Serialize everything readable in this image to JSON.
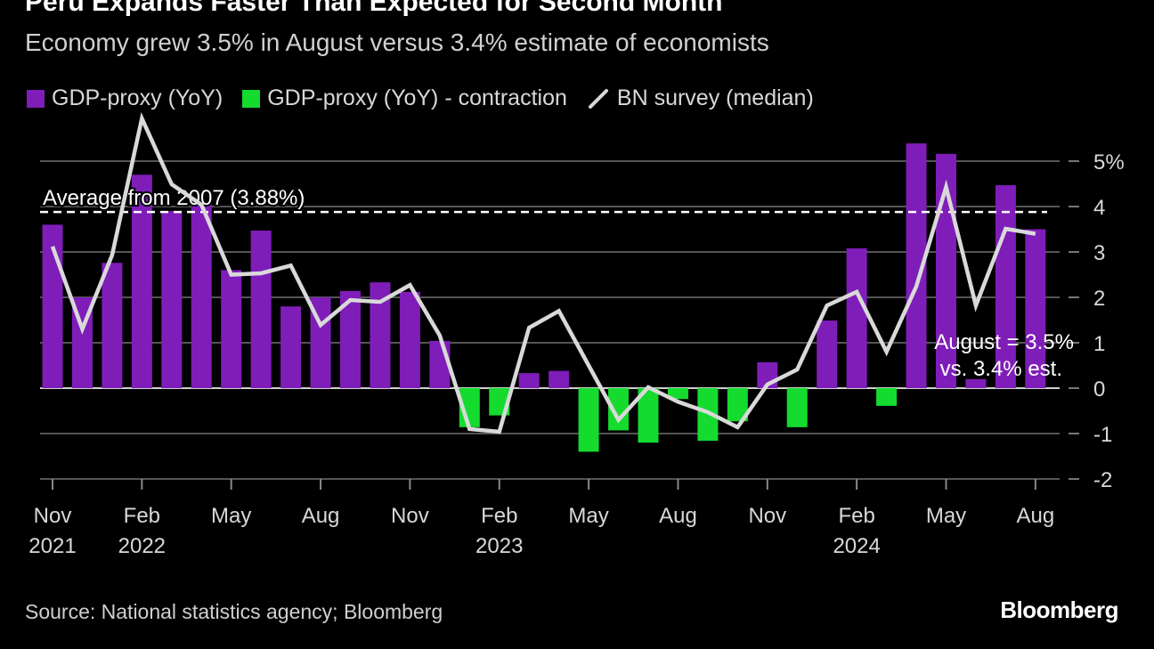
{
  "title": "Peru Expands Faster Than Expected for Second Month",
  "subtitle": "Economy grew 3.5% in August versus 3.4% estimate of economists",
  "source": "Source: National statistics agency; Bloomberg",
  "logo": "Bloomberg",
  "colors": {
    "positive": "#7f1db9",
    "contraction": "#14db2e",
    "survey": "#d9d9d9",
    "grid": "#555555"
  },
  "chart_data": {
    "type": "bar",
    "title": "Peru Expands Faster Than Expected for Second Month",
    "subtitle": "Economy grew 3.5% in August versus 3.4% estimate of economists",
    "legend": [
      {
        "name": "GDP-proxy (YoY)",
        "marker": "square",
        "color": "#7f1db9"
      },
      {
        "name": "GDP-proxy (YoY) - contraction",
        "marker": "square",
        "color": "#14db2e"
      },
      {
        "name": "BN survey (median)",
        "marker": "line",
        "color": "#d9d9d9"
      }
    ],
    "legend_position": "top-left",
    "categories": [
      "Nov 2021",
      "Dec 2021",
      "Jan 2022",
      "Feb 2022",
      "Mar 2022",
      "Apr 2022",
      "May 2022",
      "Jun 2022",
      "Jul 2022",
      "Aug 2022",
      "Sep 2022",
      "Oct 2022",
      "Nov 2022",
      "Dec 2022",
      "Jan 2023",
      "Feb 2023",
      "Mar 2023",
      "Apr 2023",
      "May 2023",
      "Jun 2023",
      "Jul 2023",
      "Aug 2023",
      "Sep 2023",
      "Oct 2023",
      "Nov 2023",
      "Dec 2023",
      "Jan 2024",
      "Feb 2024",
      "Mar 2024",
      "Apr 2024",
      "May 2024",
      "Jun 2024",
      "Jul 2024",
      "Aug 2024"
    ],
    "series": [
      {
        "name": "GDP-proxy (YoY)",
        "type": "bar",
        "values": [
          3.6,
          2.0,
          2.76,
          4.7,
          3.9,
          4.08,
          2.6,
          3.47,
          1.8,
          2.0,
          2.14,
          2.33,
          2.12,
          1.04,
          -0.86,
          -0.6,
          0.33,
          0.38,
          -1.4,
          -0.93,
          -1.2,
          -0.24,
          -1.16,
          -0.73,
          0.57,
          -0.86,
          1.49,
          3.08,
          -0.39,
          5.39,
          5.16,
          0.2,
          4.47,
          3.5
        ]
      },
      {
        "name": "BN survey (median)",
        "type": "line",
        "values": [
          3.12,
          1.3,
          2.93,
          5.94,
          4.49,
          4.04,
          2.5,
          2.53,
          2.7,
          1.39,
          1.94,
          1.9,
          2.27,
          1.16,
          -0.9,
          -0.96,
          1.33,
          1.7,
          0.5,
          -0.7,
          0.02,
          -0.3,
          -0.53,
          -0.86,
          0.08,
          0.41,
          1.82,
          2.12,
          0.8,
          2.24,
          4.43,
          1.82,
          3.51,
          3.4
        ]
      }
    ],
    "x_tick_labels": [
      {
        "month": "Nov",
        "year": "2021",
        "index": 0
      },
      {
        "month": "Feb",
        "year": "2022",
        "index": 3
      },
      {
        "month": "May",
        "year": "",
        "index": 6
      },
      {
        "month": "Aug",
        "year": "",
        "index": 9
      },
      {
        "month": "Nov",
        "year": "",
        "index": 12
      },
      {
        "month": "Feb",
        "year": "2023",
        "index": 15
      },
      {
        "month": "May",
        "year": "",
        "index": 18
      },
      {
        "month": "Aug",
        "year": "",
        "index": 21
      },
      {
        "month": "Nov",
        "year": "",
        "index": 24
      },
      {
        "month": "Feb",
        "year": "2024",
        "index": 27
      },
      {
        "month": "May",
        "year": "",
        "index": 30
      },
      {
        "month": "Aug",
        "year": "",
        "index": 33
      }
    ],
    "y_ticks": [
      {
        "value": 5,
        "label": "5%"
      },
      {
        "value": 4,
        "label": "4"
      },
      {
        "value": 3,
        "label": "3"
      },
      {
        "value": 2,
        "label": "2"
      },
      {
        "value": 1,
        "label": "1"
      },
      {
        "value": 0,
        "label": "0"
      },
      {
        "value": -1,
        "label": "-1"
      },
      {
        "value": -2,
        "label": "-2"
      }
    ],
    "ylim": [
      -2,
      5.9
    ],
    "y_axis_side": "right",
    "grid": true,
    "reference_line": {
      "value": 3.88,
      "label": "Average from 2007 (3.88%)",
      "style": "dashed"
    },
    "annotation": {
      "line1": "August = 3.5%",
      "line2": "vs. 3.4% est."
    }
  }
}
